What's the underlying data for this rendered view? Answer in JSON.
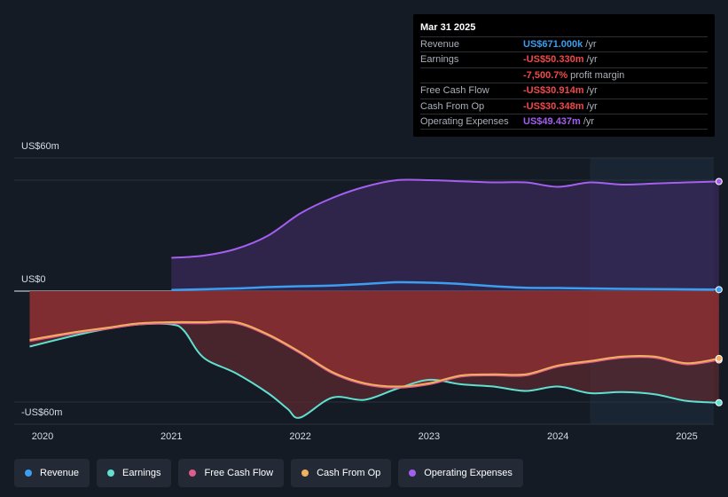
{
  "tooltip": {
    "date": "Mar 31 2025",
    "rows": [
      {
        "label": "Revenue",
        "value": "US$671.000k",
        "unit": "/yr",
        "color": "#3b9ef0"
      },
      {
        "label": "Earnings",
        "value": "-US$50.330m",
        "unit": "/yr",
        "color": "#f0494a"
      },
      {
        "label": "",
        "value": "-7,500.7%",
        "unit": "profit margin",
        "color": "#f0494a"
      },
      {
        "label": "Free Cash Flow",
        "value": "-US$30.914m",
        "unit": "/yr",
        "color": "#f0494a"
      },
      {
        "label": "Cash From Op",
        "value": "-US$30.348m",
        "unit": "/yr",
        "color": "#f0494a"
      },
      {
        "label": "Operating Expenses",
        "value": "US$49.437m",
        "unit": "/yr",
        "color": "#a55ff0"
      }
    ]
  },
  "legend": [
    {
      "label": "Revenue",
      "color": "#3b9ef0"
    },
    {
      "label": "Earnings",
      "color": "#5fe0d0"
    },
    {
      "label": "Free Cash Flow",
      "color": "#e05c8a"
    },
    {
      "label": "Cash From Op",
      "color": "#f0b060"
    },
    {
      "label": "Operating Expenses",
      "color": "#a55ff0"
    }
  ],
  "chart_data": {
    "type": "area",
    "y_tick_labels": [
      "US$60m",
      "US$0",
      "-US$60m"
    ],
    "x_tick_labels": [
      "2020",
      "2021",
      "2022",
      "2023",
      "2024",
      "2025"
    ],
    "ylim": [
      -60,
      60
    ],
    "xlim": [
      2019.9,
      2025.27
    ],
    "forecast_start": 2024.25,
    "series": [
      {
        "name": "Operating Expenses",
        "color": "#a55ff0",
        "x": [
          2021.0,
          2021.25,
          2021.5,
          2021.75,
          2022.0,
          2022.25,
          2022.5,
          2022.75,
          2023.0,
          2023.25,
          2023.5,
          2023.75,
          2024.0,
          2024.25,
          2024.5,
          2024.75,
          2025.0,
          2025.25
        ],
        "values": [
          15,
          16,
          19,
          25,
          35,
          42,
          47,
          50,
          50,
          49.5,
          49,
          49,
          47,
          49,
          48,
          48.5,
          49,
          49.4
        ]
      },
      {
        "name": "Revenue",
        "color": "#3b9ef0",
        "x": [
          2021.0,
          2021.5,
          2021.75,
          2022.0,
          2022.25,
          2022.5,
          2022.75,
          2023.0,
          2023.25,
          2023.5,
          2023.75,
          2024.0,
          2024.25,
          2024.5,
          2024.75,
          2025.0,
          2025.25
        ],
        "values": [
          0.5,
          1.2,
          1.8,
          2.2,
          2.5,
          3.2,
          4,
          3.8,
          3.2,
          2.2,
          1.5,
          1.4,
          1.2,
          1.0,
          0.9,
          0.8,
          0.67
        ]
      },
      {
        "name": "Earnings",
        "color": "#5fe0d0",
        "x": [
          2019.9,
          2020.25,
          2020.5,
          2020.75,
          2021.0,
          2021.1,
          2021.25,
          2021.5,
          2021.75,
          2021.9,
          2022.0,
          2022.25,
          2022.5,
          2022.75,
          2023.0,
          2023.25,
          2023.5,
          2023.75,
          2024.0,
          2024.25,
          2024.5,
          2024.75,
          2025.0,
          2025.25
        ],
        "values": [
          -25,
          -20,
          -17,
          -15,
          -15,
          -18,
          -30,
          -37,
          -46,
          -53,
          -57,
          -48,
          -49,
          -44,
          -40,
          -42,
          -43,
          -45,
          -43,
          -46,
          -45.5,
          -46.5,
          -49.5,
          -50.3
        ]
      },
      {
        "name": "Free Cash Flow",
        "color": "#e05c8a",
        "x": [
          2019.9,
          2020.25,
          2020.5,
          2020.75,
          2021.0,
          2021.25,
          2021.5,
          2021.75,
          2022.0,
          2022.25,
          2022.5,
          2022.75,
          2023.0,
          2023.25,
          2023.5,
          2023.75,
          2024.0,
          2024.25,
          2024.5,
          2024.75,
          2025.0,
          2025.25
        ],
        "values": [
          -22.5,
          -19,
          -17,
          -15,
          -14.5,
          -14.5,
          -14.5,
          -20,
          -28,
          -37,
          -42,
          -43.5,
          -42,
          -38.5,
          -38,
          -38,
          -34,
          -32,
          -30,
          -30,
          -33,
          -31
        ]
      },
      {
        "name": "Cash From Op",
        "color": "#f0b060",
        "x": [
          2019.9,
          2020.25,
          2020.5,
          2020.75,
          2021.0,
          2021.25,
          2021.5,
          2021.75,
          2022.0,
          2022.25,
          2022.5,
          2022.75,
          2023.0,
          2023.25,
          2023.5,
          2023.75,
          2024.0,
          2024.25,
          2024.5,
          2024.75,
          2025.0,
          2025.25
        ],
        "values": [
          -22,
          -18.5,
          -16.5,
          -14.5,
          -14,
          -14,
          -14,
          -19.5,
          -27.5,
          -36.5,
          -41.5,
          -43,
          -41.5,
          -38,
          -37.5,
          -37.5,
          -33.5,
          -31.5,
          -29.5,
          -29.5,
          -32.5,
          -30.35
        ]
      }
    ]
  }
}
